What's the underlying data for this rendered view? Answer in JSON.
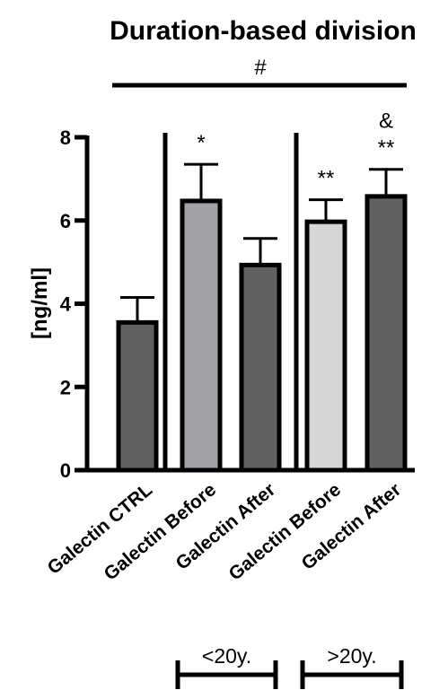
{
  "chart_data": {
    "type": "bar",
    "title": "Duration-based division",
    "ylabel": "[ng/ml]",
    "xlabel": "",
    "ylim": [
      0,
      8
    ],
    "yticks": [
      0,
      2,
      4,
      6,
      8
    ],
    "grid": false,
    "categories": [
      "Galectin CTRL",
      "Galectin Before",
      "Galectin After",
      "Galectin Before",
      "Galectin After"
    ],
    "values": [
      3.55,
      6.47,
      4.93,
      5.97,
      6.58
    ],
    "error_upper": [
      4.15,
      7.35,
      5.57,
      6.5,
      7.23
    ],
    "bar_colors": [
      "#616161",
      "#a2a2a6",
      "#616161",
      "#d6d6d6",
      "#616161"
    ],
    "significance": [
      "",
      "*",
      "",
      "**",
      "**"
    ],
    "significance_extra": [
      "",
      "",
      "",
      "",
      "&"
    ],
    "overall_marker": "#",
    "groups": [
      {
        "label": "<20y.",
        "start": 1,
        "end": 2
      },
      {
        "label": ">20y.",
        "start": 3,
        "end": 4
      }
    ]
  }
}
